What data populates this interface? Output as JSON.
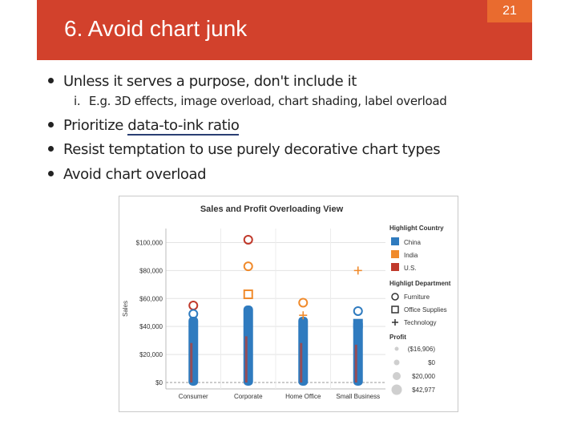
{
  "slide": {
    "title": "6. Avoid chart junk",
    "page_number": "21"
  },
  "bullets": [
    {
      "text": "Unless it serves a purpose, don't include it"
    },
    {
      "text_before_link": "Prioritize ",
      "link_text": "data-to-ink ratio"
    },
    {
      "text": "Resist temptation to use purely decorative chart types"
    },
    {
      "text": "Avoid chart overload"
    }
  ],
  "sub_bullet": {
    "marker": "i.",
    "text": "E.g. 3D effects, image overload, chart shading, label overload"
  },
  "colors": {
    "title_band": "#d2412c",
    "page_badge": "#e96b2f",
    "china": "#2f7bbf",
    "india": "#f08a2b",
    "us": "#c0392b"
  },
  "chart_data": {
    "type": "scatter",
    "title": "Sales and Profit Overloading View",
    "xlabel": "",
    "ylabel": "Sales",
    "categories": [
      "Consumer",
      "Corporate",
      "Home Office",
      "Small Business"
    ],
    "y_ticks": [
      "$0",
      "$20,000",
      "$40,000",
      "$60,000",
      "$80,000",
      "$100,000"
    ],
    "ylim": [
      0,
      110000
    ],
    "legend_country_title": "Highlight Country",
    "legend_country": [
      "China",
      "India",
      "U.S."
    ],
    "legend_department_title": "Highligt Department",
    "legend_department": [
      "Furniture",
      "Office Supplies",
      "Technology"
    ],
    "legend_profit_title": "Profit",
    "legend_profit": [
      "($16,906)",
      "$0",
      "$20,000",
      "$42,977"
    ],
    "outliers": [
      {
        "category": "Corporate",
        "sales": 102000,
        "shape": "circle",
        "country": "U.S."
      },
      {
        "category": "Corporate",
        "sales": 83000,
        "shape": "circle",
        "country": "India"
      },
      {
        "category": "Small Business",
        "sales": 80000,
        "shape": "plus",
        "country": "India"
      },
      {
        "category": "Corporate",
        "sales": 63000,
        "shape": "square",
        "country": "India"
      },
      {
        "category": "Home Office",
        "sales": 57000,
        "shape": "circle",
        "country": "India"
      },
      {
        "category": "Consumer",
        "sales": 55000,
        "shape": "circle",
        "country": "U.S."
      },
      {
        "category": "Small Business",
        "sales": 51000,
        "shape": "circle",
        "country": "China"
      },
      {
        "category": "Consumer",
        "sales": 49000,
        "shape": "circle",
        "country": "China"
      },
      {
        "category": "Home Office",
        "sales": 48000,
        "shape": "plus",
        "country": "India"
      },
      {
        "category": "Small Business",
        "sales": 42000,
        "shape": "square",
        "country": "China"
      }
    ]
  }
}
